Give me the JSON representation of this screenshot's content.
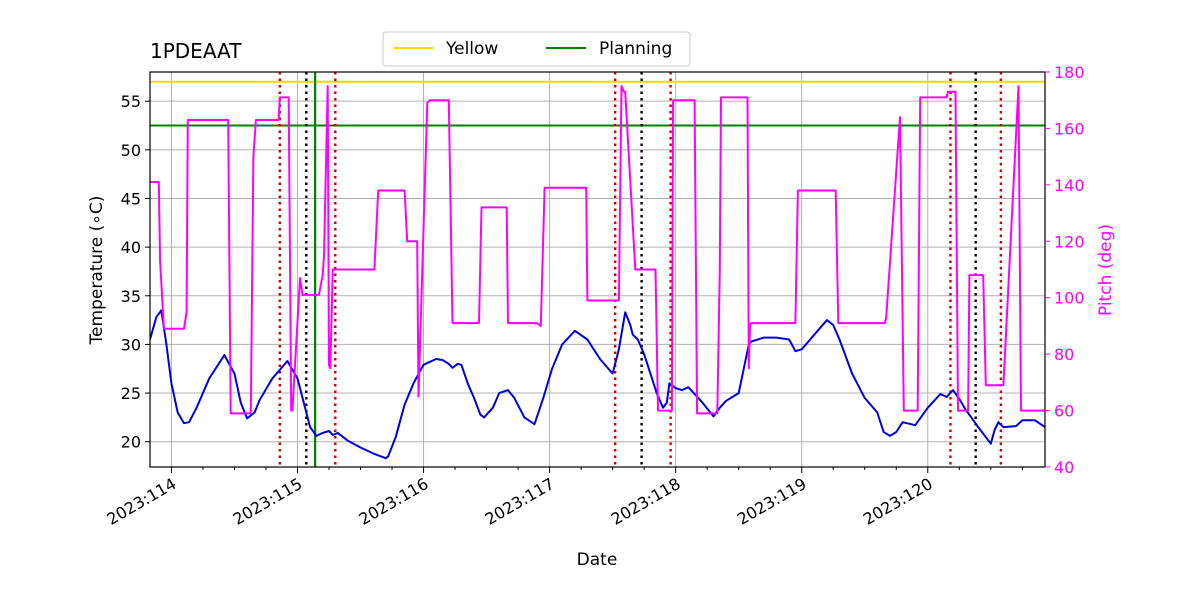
{
  "chart_data": {
    "type": "line",
    "title": "1PDEAAT",
    "xlabel": "Date",
    "ylabel": "Temperature ($^\\circ$C)",
    "ylabel_display": "Temperature (∘C)",
    "y2label": "Pitch (deg)",
    "xlim": [
      113.83,
      120.93
    ],
    "ylim": [
      17.4,
      58.0
    ],
    "y2lim": [
      40,
      180
    ],
    "x_ticks": [
      {
        "value": 114,
        "label": "2023:114"
      },
      {
        "value": 115,
        "label": "2023:115"
      },
      {
        "value": 116,
        "label": "2023:116"
      },
      {
        "value": 117,
        "label": "2023:117"
      },
      {
        "value": 118,
        "label": "2023:118"
      },
      {
        "value": 119,
        "label": "2023:119"
      },
      {
        "value": 120,
        "label": "2023:120"
      }
    ],
    "y_ticks": [
      20,
      25,
      30,
      35,
      40,
      45,
      50,
      55
    ],
    "y2_ticks": [
      40,
      60,
      80,
      100,
      120,
      140,
      160,
      180
    ],
    "grid": true,
    "legend": {
      "position": "top-center",
      "entries": [
        {
          "name": "Yellow",
          "color": "#ffd700"
        },
        {
          "name": "Planning",
          "color": "#008000"
        }
      ]
    },
    "hlines": [
      {
        "name": "Yellow",
        "y": 57.0,
        "color": "#ffd700"
      },
      {
        "name": "Planning",
        "y": 52.5,
        "color": "#008000"
      }
    ],
    "vlines": [
      {
        "x": 114.86,
        "color": "#cc0000",
        "style": "dotted"
      },
      {
        "x": 115.07,
        "color": "#000000",
        "style": "dotted"
      },
      {
        "x": 115.14,
        "color": "#008000",
        "style": "solid"
      },
      {
        "x": 115.3,
        "color": "#cc0000",
        "style": "dotted"
      },
      {
        "x": 117.52,
        "color": "#cc0000",
        "style": "dotted"
      },
      {
        "x": 117.73,
        "color": "#000000",
        "style": "dotted"
      },
      {
        "x": 117.96,
        "color": "#cc0000",
        "style": "dotted"
      },
      {
        "x": 120.18,
        "color": "#cc0000",
        "style": "dotted"
      },
      {
        "x": 120.38,
        "color": "#000000",
        "style": "dotted"
      },
      {
        "x": 120.58,
        "color": "#cc0000",
        "style": "dotted"
      }
    ],
    "series": [
      {
        "name": "1PDEAAT",
        "axis": "left",
        "color": "#0000dd",
        "x": [
          113.83,
          113.88,
          113.92,
          113.96,
          114.0,
          114.05,
          114.1,
          114.14,
          114.2,
          114.3,
          114.42,
          114.5,
          114.55,
          114.6,
          114.66,
          114.7,
          114.8,
          114.92,
          115.0,
          115.05,
          115.1,
          115.15,
          115.2,
          115.25,
          115.28,
          115.32,
          115.4,
          115.5,
          115.6,
          115.7,
          115.72,
          115.78,
          115.85,
          115.92,
          116.0,
          116.05,
          116.1,
          116.15,
          116.2,
          116.23,
          116.27,
          116.3,
          116.35,
          116.4,
          116.45,
          116.48,
          116.55,
          116.6,
          116.67,
          116.72,
          116.8,
          116.88,
          116.95,
          117.02,
          117.1,
          117.2,
          117.3,
          117.35,
          117.4,
          117.5,
          117.55,
          117.6,
          117.64,
          117.66,
          117.7,
          117.75,
          117.8,
          117.85,
          117.9,
          117.93,
          117.95,
          118.0,
          118.05,
          118.1,
          118.2,
          118.3,
          118.35,
          118.4,
          118.5,
          118.58,
          118.6,
          118.7,
          118.8,
          118.9,
          118.95,
          119.0,
          119.1,
          119.2,
          119.25,
          119.3,
          119.4,
          119.5,
          119.6,
          119.65,
          119.7,
          119.75,
          119.8,
          119.9,
          120.0,
          120.1,
          120.15,
          120.2,
          120.25,
          120.3,
          120.4,
          120.5,
          120.53,
          120.56,
          120.6,
          120.7,
          120.75,
          120.85,
          120.93
        ],
        "y": [
          30.5,
          32.8,
          33.5,
          30.0,
          26.0,
          23.0,
          21.9,
          22.0,
          23.5,
          26.5,
          28.9,
          27.0,
          24.0,
          22.4,
          23.0,
          24.3,
          26.5,
          28.3,
          26.5,
          24.0,
          21.5,
          20.6,
          20.9,
          21.1,
          20.7,
          20.9,
          20.1,
          19.4,
          18.8,
          18.3,
          18.5,
          20.5,
          23.8,
          26.0,
          27.9,
          28.2,
          28.5,
          28.4,
          28.0,
          27.6,
          28.0,
          27.9,
          26.0,
          24.5,
          22.8,
          22.5,
          23.5,
          25.0,
          25.3,
          24.5,
          22.5,
          21.8,
          24.5,
          27.5,
          30.0,
          31.4,
          30.5,
          29.5,
          28.5,
          27.0,
          29.5,
          33.3,
          32.0,
          31.0,
          30.5,
          29.0,
          27.0,
          25.0,
          23.5,
          24.0,
          26.0,
          25.5,
          25.3,
          25.6,
          24.2,
          22.6,
          23.5,
          24.2,
          25.0,
          30.0,
          30.3,
          30.7,
          30.7,
          30.5,
          29.3,
          29.5,
          31.0,
          32.5,
          32.0,
          30.5,
          27.0,
          24.5,
          23.0,
          21.0,
          20.6,
          21.0,
          22.0,
          21.7,
          23.5,
          24.9,
          24.6,
          25.3,
          24.4,
          23.3,
          21.5,
          19.8,
          21.2,
          22.0,
          21.5,
          21.6,
          22.2,
          22.2,
          21.5
        ]
      },
      {
        "name": "Pitch",
        "axis": "right",
        "color": "#ff00ff",
        "x": [
          113.83,
          113.9,
          113.91,
          113.94,
          114.1,
          114.12,
          114.13,
          114.45,
          114.47,
          114.63,
          114.65,
          114.67,
          114.85,
          114.86,
          114.93,
          114.95,
          114.96,
          115.02,
          115.03,
          115.04,
          115.15,
          115.16,
          115.17,
          115.2,
          115.21,
          115.24,
          115.25,
          115.26,
          115.28,
          115.29,
          115.61,
          115.64,
          115.85,
          115.87,
          115.95,
          115.96,
          116.03,
          116.05,
          116.2,
          116.23,
          116.44,
          116.46,
          116.66,
          116.67,
          116.7,
          116.9,
          116.93,
          116.96,
          117.29,
          117.3,
          117.55,
          117.57,
          117.59,
          117.6,
          117.68,
          117.7,
          117.71,
          117.84,
          117.86,
          117.93,
          117.97,
          117.98,
          118.15,
          118.17,
          118.33,
          118.35,
          118.36,
          118.57,
          118.58,
          118.59,
          118.6,
          118.95,
          118.97,
          119.27,
          119.29,
          119.65,
          119.66,
          119.67,
          119.78,
          119.81,
          119.92,
          119.94,
          120.15,
          120.16,
          120.22,
          120.24,
          120.32,
          120.33,
          120.44,
          120.46,
          120.57,
          120.6,
          120.72,
          120.74,
          120.93
        ],
        "y": [
          141,
          141,
          113,
          89,
          89,
          95,
          163,
          163,
          59,
          59,
          150,
          163,
          163,
          171,
          171,
          60,
          60,
          107,
          104,
          101,
          101,
          101,
          101,
          108,
          115,
          175,
          76,
          75,
          110,
          110,
          110,
          138,
          138,
          120,
          120,
          65,
          169,
          170,
          170,
          91,
          91,
          132,
          132,
          91,
          91,
          91,
          90,
          139,
          139,
          99,
          99,
          175,
          173,
          173,
          110,
          110,
          110,
          110,
          60,
          60,
          60,
          170,
          170,
          59,
          59,
          110,
          171,
          171,
          75,
          90,
          91,
          91,
          138,
          138,
          91,
          91,
          91,
          93,
          164,
          60,
          60,
          171,
          171,
          173,
          173,
          60,
          60,
          108,
          108,
          69,
          69,
          69,
          175,
          60,
          60
        ]
      }
    ]
  }
}
